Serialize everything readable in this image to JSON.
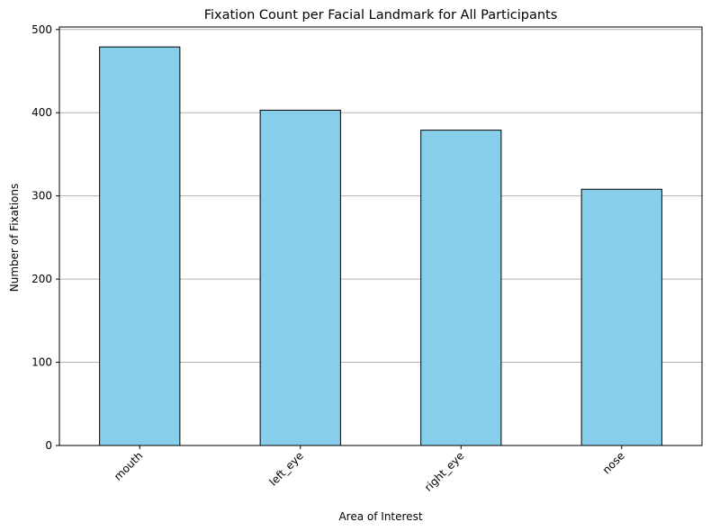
{
  "chart_data": {
    "type": "bar",
    "title": "Fixation Count per Facial Landmark for All Participants",
    "xlabel": "Area of Interest",
    "ylabel": "Number of Fixations",
    "categories": [
      "mouth",
      "left_eye",
      "right_eye",
      "nose"
    ],
    "values": [
      479,
      403,
      379,
      308
    ],
    "ylim": [
      0,
      503
    ],
    "yticks": [
      0,
      100,
      200,
      300,
      400,
      500
    ],
    "grid": "y",
    "colors": {
      "bar": "#87ceeb",
      "edge": "#000000",
      "grid": "#b0b0b0"
    }
  }
}
